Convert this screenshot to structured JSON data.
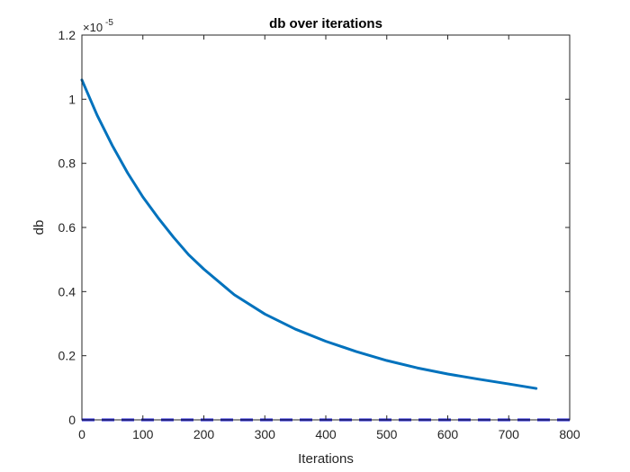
{
  "chart_data": {
    "type": "line",
    "title": "db over iterations",
    "xlabel": "Iterations",
    "ylabel": "db",
    "xlim": [
      0,
      800
    ],
    "ylim": [
      0,
      1.2
    ],
    "y_exponent_label": "×10",
    "y_exponent_power": "-5",
    "xticks": [
      0,
      100,
      200,
      300,
      400,
      500,
      600,
      700,
      800
    ],
    "xtick_labels": [
      "0",
      "100",
      "200",
      "300",
      "400",
      "500",
      "600",
      "700",
      "800"
    ],
    "yticks": [
      0,
      0.2,
      0.4,
      0.6,
      0.8,
      1.0,
      1.2
    ],
    "ytick_labels": [
      "0",
      "0.2",
      "0.4",
      "0.6",
      "0.8",
      "1",
      "1.2"
    ],
    "grid": false,
    "series": [
      {
        "style": "solid",
        "color": "#0072BD",
        "x": [
          0,
          25,
          50,
          75,
          100,
          125,
          150,
          175,
          200,
          250,
          300,
          350,
          400,
          450,
          500,
          550,
          600,
          650,
          700,
          745
        ],
        "y": [
          1.06,
          0.95,
          0.855,
          0.77,
          0.695,
          0.63,
          0.57,
          0.515,
          0.47,
          0.39,
          0.33,
          0.283,
          0.245,
          0.213,
          0.185,
          0.162,
          0.143,
          0.127,
          0.112,
          0.098
        ]
      },
      {
        "style": "dashed",
        "color": "#1f1fdd",
        "x": [
          0,
          800
        ],
        "y": [
          0,
          0
        ]
      }
    ]
  }
}
